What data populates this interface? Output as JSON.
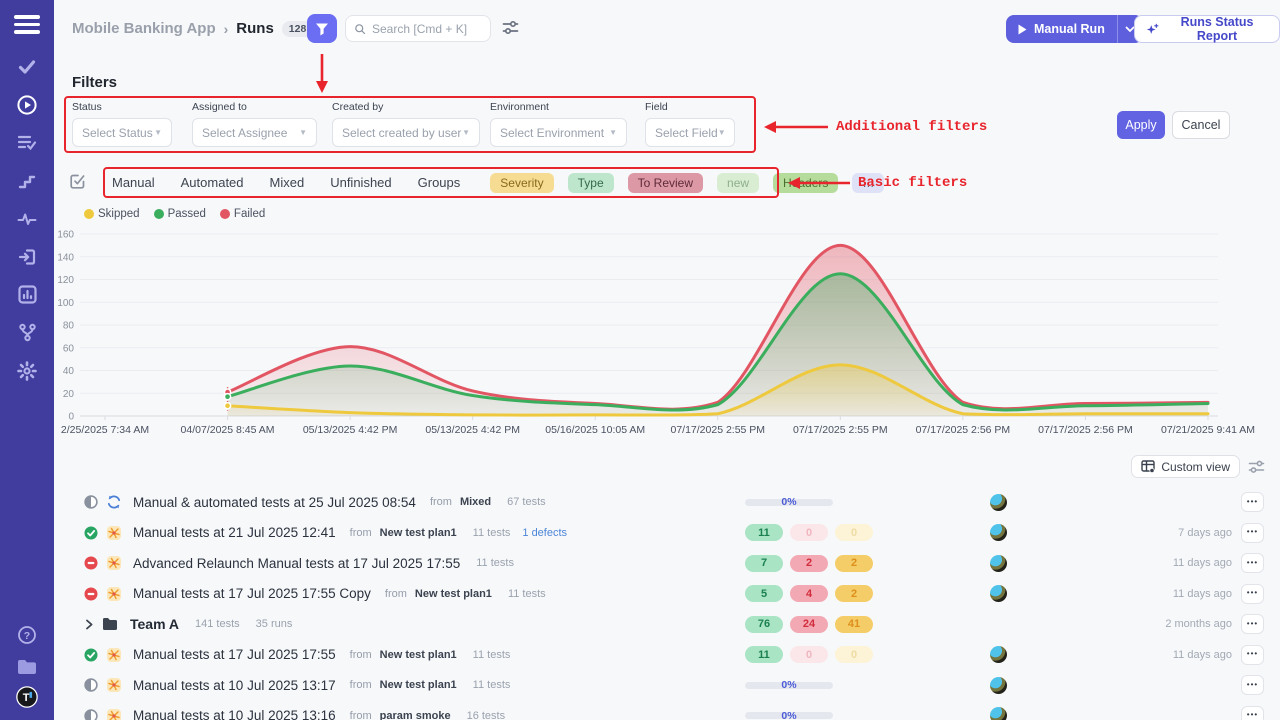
{
  "sidebar": {
    "items": [
      "tasks",
      "runs",
      "plans",
      "steps",
      "pulse",
      "import",
      "analytics",
      "branches",
      "settings"
    ],
    "bottom_items": [
      "help",
      "projects",
      "logo"
    ],
    "active_item": "runs",
    "logo_letter": "T",
    "bg_color": "#403d9f"
  },
  "header": {
    "breadcrumb": "Mobile Banking App",
    "breadcrumb_sep": "›",
    "page": "Runs",
    "count": "128",
    "search_placeholder": "Search [Cmd + K]",
    "manual_run": "Manual Run",
    "runs_status_report": "Runs Status Report"
  },
  "filters": {
    "title": "Filters",
    "fields": [
      {
        "label": "Status",
        "placeholder": "Select Status"
      },
      {
        "label": "Assigned to",
        "placeholder": "Select Assignee"
      },
      {
        "label": "Created by",
        "placeholder": "Select created by user"
      },
      {
        "label": "Environment",
        "placeholder": "Select Environment"
      },
      {
        "label": "Field",
        "placeholder": "Select Field"
      }
    ],
    "apply": "Apply",
    "cancel": "Cancel"
  },
  "annotations": {
    "additional": "Additional filters",
    "basic": "Basic filters",
    "color": "#e8252c"
  },
  "basic_filters": {
    "tabs": [
      "Manual",
      "Automated",
      "Mixed",
      "Unfinished",
      "Groups"
    ],
    "chips": [
      {
        "label": "Severity",
        "bg": "#f6dc92",
        "fg": "#8a6a1c"
      },
      {
        "label": "Type",
        "bg": "#bde6cd",
        "fg": "#356a4d"
      },
      {
        "label": "To Review",
        "bg": "#dd98a6",
        "fg": "#5e2b38"
      },
      {
        "label": "new",
        "bg": "#d8edd2",
        "fg": "#8fae8c"
      },
      {
        "label": "Headers",
        "bg": "#b6dc9c",
        "fg": "#4a7030"
      },
      {
        "label": "…",
        "bg": "#dfe2f6",
        "fg": "#5a5f6e"
      }
    ]
  },
  "chart_data": {
    "type": "area",
    "title": "",
    "xlabel": "",
    "ylabel": "",
    "ylim": [
      0,
      160
    ],
    "ytick_step": 20,
    "grid": true,
    "legend_position": "top-left",
    "legend": [
      {
        "label": "Skipped",
        "color": "#eec93e"
      },
      {
        "label": "Passed",
        "color": "#3bae5e"
      },
      {
        "label": "Failed",
        "color": "#e25563"
      }
    ],
    "x_labels": [
      "2/25/2025 7:34 AM",
      "04/07/2025 8:45 AM",
      "05/13/2025 4:42 PM",
      "05/13/2025 4:42 PM",
      "05/16/2025 10:05 AM",
      "07/17/2025 2:55 PM",
      "07/17/2025 2:55 PM",
      "07/17/2025 2:56 PM",
      "07/17/2025 2:56 PM",
      "07/21/2025 9:41 AM"
    ],
    "series": [
      {
        "name": "Failed",
        "color": "#e25563",
        "values": [
          null,
          21,
          61,
          22,
          11,
          12,
          150,
          12,
          11,
          12
        ]
      },
      {
        "name": "Passed",
        "color": "#3bae5e",
        "values": [
          null,
          17,
          44,
          18,
          10,
          10,
          125,
          10,
          9,
          11
        ]
      },
      {
        "name": "Skipped",
        "color": "#eec93e",
        "values": [
          null,
          9,
          3,
          1,
          1,
          2,
          45,
          2,
          2,
          2
        ]
      }
    ]
  },
  "toolbar": {
    "custom_view": "Custom view"
  },
  "icons": {
    "more": "•••"
  },
  "runs": [
    {
      "status": "in-progress",
      "type": "mixed",
      "title": "Manual & automated tests at 25 Jul 2025 08:54",
      "from_label": "from",
      "plan": "Mixed",
      "tests": "67 tests",
      "defects": "",
      "progress": "0%",
      "badges": [],
      "avatar": true,
      "time": ""
    },
    {
      "status": "passed",
      "type": "manual",
      "title": "Manual tests at 21 Jul 2025 12:41",
      "from_label": "from",
      "plan": "New test plan1",
      "tests": "11 tests",
      "defects": "1 defects",
      "progress": "",
      "badges": [
        {
          "value": "11",
          "style": "green"
        },
        {
          "value": "0",
          "style": "red-faded"
        },
        {
          "value": "0",
          "style": "yellow-faded"
        }
      ],
      "avatar": true,
      "time": "7 days ago"
    },
    {
      "status": "stopped",
      "type": "manual",
      "title": "Advanced Relaunch Manual tests at 17 Jul 2025 17:55",
      "from_label": "",
      "plan": "",
      "tests": "11 tests",
      "defects": "",
      "progress": "",
      "badges": [
        {
          "value": "7",
          "style": "green"
        },
        {
          "value": "2",
          "style": "red"
        },
        {
          "value": "2",
          "style": "yellow"
        }
      ],
      "avatar": true,
      "time": "11 days ago"
    },
    {
      "status": "stopped",
      "type": "manual",
      "title": "Manual tests at 17 Jul 2025 17:55 Copy",
      "from_label": "from",
      "plan": "New test plan1",
      "tests": "11 tests",
      "defects": "",
      "progress": "",
      "badges": [
        {
          "value": "5",
          "style": "green"
        },
        {
          "value": "4",
          "style": "red"
        },
        {
          "value": "2",
          "style": "yellow"
        }
      ],
      "avatar": true,
      "time": "11 days ago"
    },
    {
      "kind": "group",
      "name": "Team A",
      "tests": "141 tests",
      "runs_count": "35 runs",
      "badges": [
        {
          "value": "76",
          "style": "green"
        },
        {
          "value": "24",
          "style": "red"
        },
        {
          "value": "41",
          "style": "yellow"
        }
      ],
      "avatar": false,
      "time": "2 months ago"
    },
    {
      "status": "passed",
      "type": "manual",
      "title": "Manual tests at 17 Jul 2025 17:55",
      "from_label": "from",
      "plan": "New test plan1",
      "tests": "11 tests",
      "defects": "",
      "progress": "",
      "badges": [
        {
          "value": "11",
          "style": "green"
        },
        {
          "value": "0",
          "style": "red-faded"
        },
        {
          "value": "0",
          "style": "yellow-faded"
        }
      ],
      "avatar": true,
      "time": "11 days ago"
    },
    {
      "status": "in-progress",
      "type": "manual",
      "title": "Manual tests at 10 Jul 2025 13:17",
      "from_label": "from",
      "plan": "New test plan1",
      "tests": "11 tests",
      "defects": "",
      "progress": "0%",
      "badges": [],
      "avatar": true,
      "time": ""
    },
    {
      "status": "in-progress",
      "type": "manual",
      "title": "Manual tests at 10 Jul 2025 13:16",
      "from_label": "from",
      "plan": "param smoke",
      "tests": "16 tests",
      "defects": "",
      "progress": "0%",
      "badges": [],
      "avatar": true,
      "time": ""
    }
  ]
}
